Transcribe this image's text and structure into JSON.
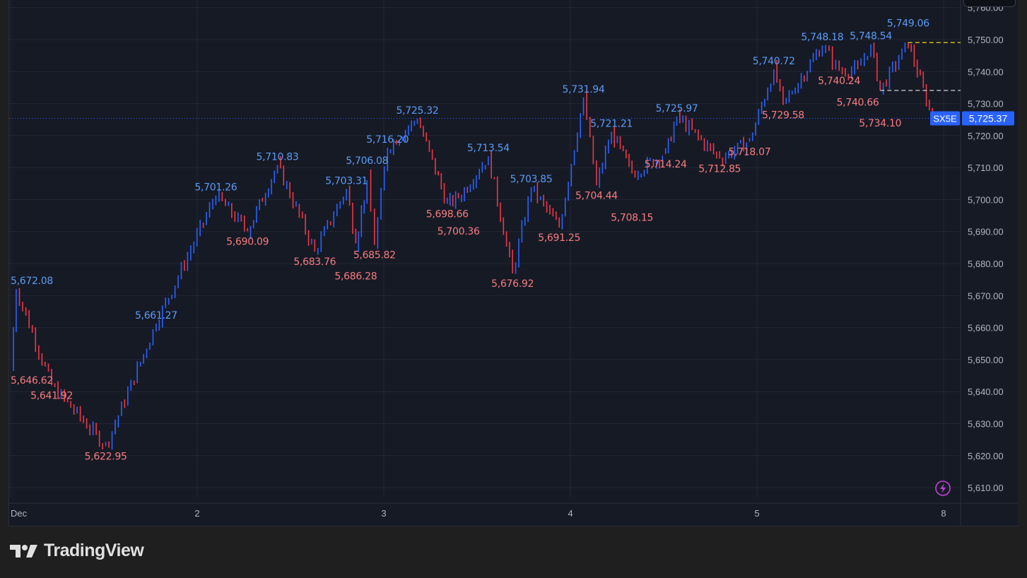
{
  "brand": {
    "name": "TradingView"
  },
  "chart_data": {
    "type": "candlestick",
    "symbol": "SX5E",
    "last_price": 5725.37,
    "last_price_label": "5,725.37",
    "ylim": [
      5605,
      5762
    ],
    "y_ticks": [
      5610,
      5620,
      5630,
      5640,
      5650,
      5660,
      5670,
      5680,
      5690,
      5700,
      5710,
      5720,
      5730,
      5740,
      5750,
      5760
    ],
    "y_tick_labels": [
      "5,610.00",
      "5,620.00",
      "5,630.00",
      "5,640.00",
      "5,650.00",
      "5,660.00",
      "5,670.00",
      "5,680.00",
      "5,690.00",
      "5,700.00",
      "5,710.00",
      "5,720.00",
      "5,730.00",
      "5,740.00",
      "5,750.00",
      "5,760.00"
    ],
    "x_ticks": [
      {
        "x": 1,
        "label": "Dec"
      },
      {
        "x": 2,
        "label": "2"
      },
      {
        "x": 3,
        "label": "3"
      },
      {
        "x": 4,
        "label": "4"
      },
      {
        "x": 5,
        "label": "5"
      },
      {
        "x": 6,
        "label": "8"
      }
    ],
    "grid": true,
    "colors": {
      "up": "#2962ff",
      "down": "#f23645",
      "high_label": "#5b9cf6",
      "low_label": "#f77c80",
      "background": "#161a25",
      "grid": "#232734",
      "price_tag": "#2962ff",
      "level_line": "#f5d90a"
    },
    "pivots": [
      {
        "x": 1.0,
        "value": 5646.62,
        "kind": "low",
        "label": "5,646.62"
      },
      {
        "x": 1.03,
        "value": 5672.08,
        "kind": "high",
        "label": "5,672.08"
      },
      {
        "x": 1.22,
        "value": 5641.92,
        "kind": "low",
        "label": "5,641.92"
      },
      {
        "x": 1.51,
        "value": 5622.95,
        "kind": "low",
        "label": "5,622.95"
      },
      {
        "x": 1.78,
        "value": 5661.27,
        "kind": "high",
        "label": "5,661.27"
      },
      {
        "x": 2.1,
        "value": 5701.26,
        "kind": "high",
        "label": "5,701.26"
      },
      {
        "x": 2.27,
        "value": 5690.09,
        "kind": "low",
        "label": "5,690.09"
      },
      {
        "x": 2.43,
        "value": 5710.83,
        "kind": "high",
        "label": "5,710.83"
      },
      {
        "x": 2.63,
        "value": 5683.76,
        "kind": "low",
        "label": "5,683.76"
      },
      {
        "x": 2.8,
        "value": 5703.31,
        "kind": "high",
        "label": "5,703.31"
      },
      {
        "x": 2.85,
        "value": 5686.28,
        "kind": "low",
        "label": "5,686.28"
      },
      {
        "x": 2.91,
        "value": 5706.08,
        "kind": "high",
        "label": "5,706.08"
      },
      {
        "x": 2.95,
        "value": 5685.82,
        "kind": "low",
        "label": "5,685.82"
      },
      {
        "x": 3.02,
        "value": 5716.2,
        "kind": "high",
        "label": "5,716.20"
      },
      {
        "x": 3.18,
        "value": 5725.32,
        "kind": "high",
        "label": "5,725.32"
      },
      {
        "x": 3.34,
        "value": 5698.66,
        "kind": "low",
        "label": "5,698.66"
      },
      {
        "x": 3.4,
        "value": 5700.36,
        "kind": "low",
        "label": "5,700.36"
      },
      {
        "x": 3.56,
        "value": 5713.54,
        "kind": "high",
        "label": "5,713.54"
      },
      {
        "x": 3.69,
        "value": 5676.92,
        "kind": "low",
        "label": "5,676.92"
      },
      {
        "x": 3.79,
        "value": 5703.85,
        "kind": "high",
        "label": "5,703.85"
      },
      {
        "x": 3.94,
        "value": 5691.25,
        "kind": "low",
        "label": "5,691.25"
      },
      {
        "x": 4.07,
        "value": 5731.94,
        "kind": "high",
        "label": "5,731.94"
      },
      {
        "x": 4.14,
        "value": 5704.44,
        "kind": "low",
        "label": "5,704.44"
      },
      {
        "x": 4.22,
        "value": 5721.21,
        "kind": "high",
        "label": "5,721.21"
      },
      {
        "x": 4.33,
        "value": 5708.15,
        "kind": "low",
        "label": "5,708.15"
      },
      {
        "x": 4.51,
        "value": 5714.24,
        "kind": "low",
        "label": "5,714.24"
      },
      {
        "x": 4.57,
        "value": 5725.97,
        "kind": "high",
        "label": "5,725.97"
      },
      {
        "x": 4.8,
        "value": 5712.85,
        "kind": "low",
        "label": "5,712.85"
      },
      {
        "x": 4.96,
        "value": 5718.07,
        "kind": "low",
        "label": "5,718.07"
      },
      {
        "x": 5.09,
        "value": 5740.72,
        "kind": "high",
        "label": "5,740.72"
      },
      {
        "x": 5.14,
        "value": 5729.58,
        "kind": "low",
        "label": "5,729.58"
      },
      {
        "x": 5.35,
        "value": 5748.18,
        "kind": "high",
        "label": "5,748.18"
      },
      {
        "x": 5.44,
        "value": 5740.24,
        "kind": "low",
        "label": "5,740.24"
      },
      {
        "x": 5.54,
        "value": 5740.66,
        "kind": "low",
        "label": "5,740.66"
      },
      {
        "x": 5.61,
        "value": 5748.54,
        "kind": "high",
        "label": "5,748.54"
      },
      {
        "x": 5.66,
        "value": 5734.1,
        "kind": "low",
        "label": "5,734.10"
      },
      {
        "x": 5.81,
        "value": 5749.06,
        "kind": "high",
        "label": "5,749.06"
      },
      {
        "x": 5.94,
        "value": 5725.37,
        "kind": "last",
        "label": ""
      }
    ],
    "levels": [
      {
        "value": 5749.06,
        "from_x": 5.81,
        "style": "dashed",
        "color": "#f5d90a"
      },
      {
        "value": 5734.1,
        "from_x": 5.66,
        "style": "dashed",
        "color": "#d1d4dc"
      }
    ]
  }
}
